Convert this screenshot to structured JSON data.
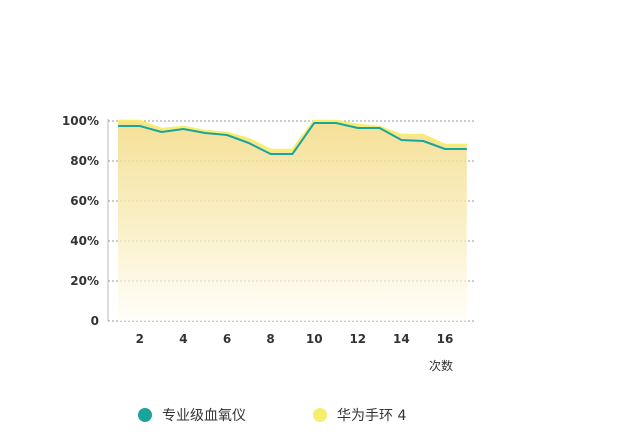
{
  "chart_data": {
    "type": "area",
    "xlabel": "次数",
    "ylabel": "",
    "x": [
      1,
      2,
      3,
      4,
      5,
      6,
      7,
      8,
      9,
      10,
      11,
      12,
      13,
      14,
      15,
      16,
      17
    ],
    "x_ticks": [
      2,
      4,
      6,
      8,
      10,
      12,
      14,
      16
    ],
    "y_ticks": [
      "0",
      "20%",
      "40%",
      "60%",
      "80%",
      "100%"
    ],
    "ylim": [
      0,
      100
    ],
    "grid": true,
    "legend_position": "bottom",
    "series": [
      {
        "name": "专业级血氧仪",
        "color": "#1aa59a",
        "values": [
          97.5,
          97.5,
          94.5,
          96,
          94,
          93,
          89,
          83.5,
          83.5,
          99,
          99,
          96.5,
          96.5,
          90.5,
          90,
          86,
          86
        ]
      },
      {
        "name": "华为手环 4",
        "color": "#f5ee6e",
        "values": [
          100,
          100,
          96,
          97,
          95,
          94,
          91,
          85.5,
          85.5,
          100,
          100,
          98,
          97,
          93,
          93,
          88,
          88
        ]
      }
    ]
  },
  "legend": {
    "series1": {
      "label": "专业级血氧仪",
      "color": "#1aa59a"
    },
    "series2": {
      "label": "华为手环 4",
      "color": "#f5ee6e"
    }
  }
}
